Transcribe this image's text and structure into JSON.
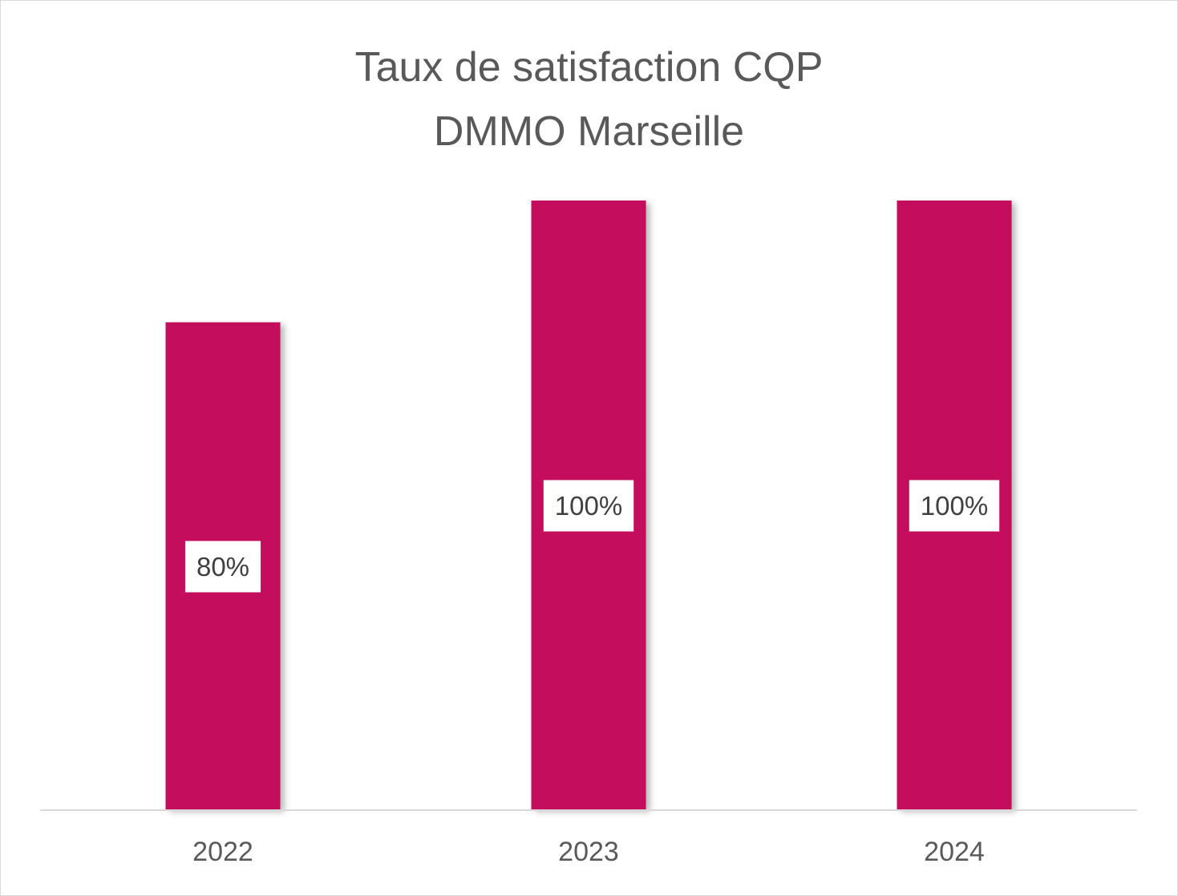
{
  "chart_data": {
    "type": "bar",
    "title_lines": [
      "Taux de satisfaction CQP",
      "DMMO Marseille"
    ],
    "categories": [
      "2022",
      "2023",
      "2024"
    ],
    "values": [
      80,
      100,
      100
    ],
    "value_labels": [
      "80%",
      "100%",
      "100%"
    ],
    "ylim": [
      0,
      100
    ],
    "grid": false,
    "legend": "none",
    "bar_color": "#C50A5D",
    "axis_color": "#D9D9D9",
    "text_color": "#595959"
  }
}
